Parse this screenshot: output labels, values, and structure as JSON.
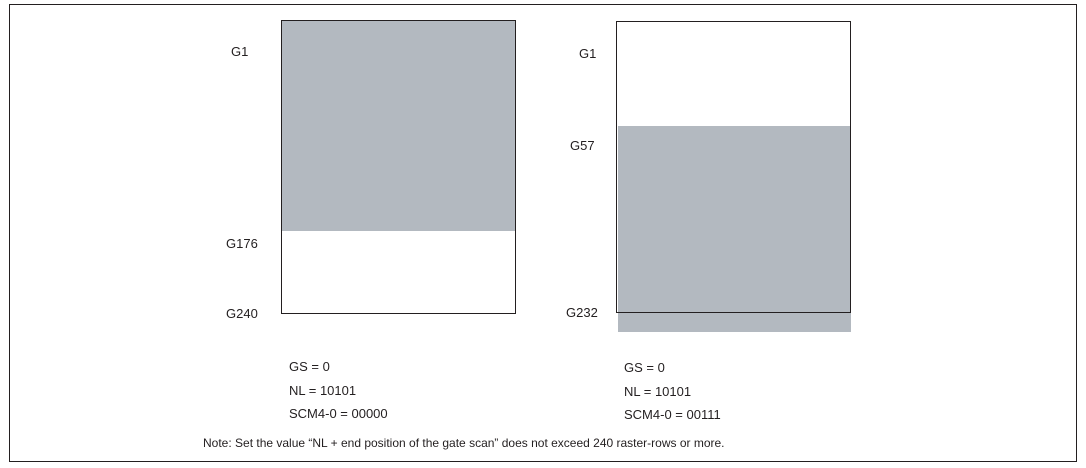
{
  "colors": {
    "shade": "#b3b9c0",
    "line": "#231f20"
  },
  "panels": [
    {
      "id": "left",
      "gate_labels": {
        "top": "G1",
        "scan_end": "G176",
        "bottom": "G240"
      },
      "params": {
        "gs": "GS = 0",
        "nl": "NL = 10101",
        "scm": "SCM4-0 = 00000"
      },
      "scan_region": {
        "start_gate": 1,
        "end_gate": 176,
        "total_gates": 240
      }
    },
    {
      "id": "right",
      "gate_labels": {
        "top": "G1",
        "scan_start": "G57",
        "bottom": "G232"
      },
      "params": {
        "gs": "GS = 0",
        "nl": "NL = 10101",
        "scm": "SCM4-0 = 00111"
      },
      "scan_region": {
        "start_gate": 57,
        "end_gate": 232,
        "total_gates": 232
      }
    }
  ],
  "note": "Note: Set the value “NL + end position of the gate scan” does not exceed 240 raster-rows or more."
}
